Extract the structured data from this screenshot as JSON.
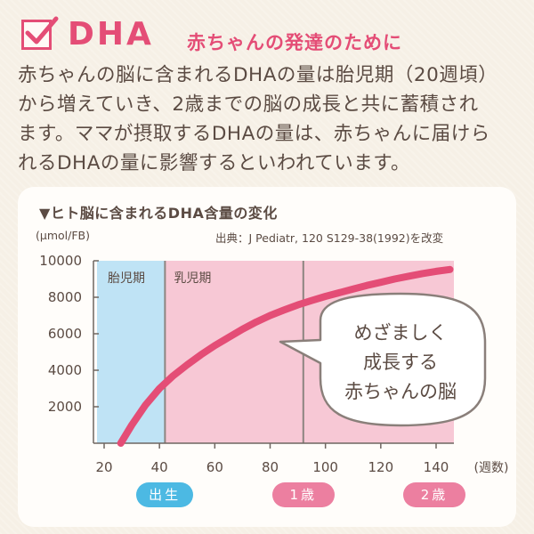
{
  "header": {
    "brand": "DHA",
    "subtitle": "赤ちゃんの発達のために"
  },
  "body_text": [
    "赤ちゃんの脳に含まれるDHAの量は胎児期（20週頃）",
    "から増えていき、2歳までの脳の成長と共に蓄積され",
    "ます。ママが摂取するDHAの量は、赤ちゃんに届けら",
    "れるDHAの量に影響するといわれています。"
  ],
  "colors": {
    "accent": "#e44d76",
    "fetal_region": "#bfe3f5",
    "infant_region": "#f7c8d5",
    "after_one_region": "#f9d3de",
    "birth_pill": "#4cb9e3",
    "age_pill": "#ec7fa0"
  },
  "chart_data": {
    "type": "line",
    "title": "▼ヒト脳に含まれるDHA含量の変化",
    "ylabel": "(μmol/FB)",
    "xlabel": "(週数)",
    "source": "出典：J Pediatr, 120 S129-38(1992)を改変",
    "xlim": [
      20,
      145
    ],
    "ylim": [
      0,
      10000
    ],
    "xticks": [
      20,
      40,
      60,
      80,
      100,
      120,
      140
    ],
    "yticks": [
      2000,
      4000,
      6000,
      8000,
      10000
    ],
    "regions": [
      {
        "label": "胎児期",
        "from": 20,
        "to": 42
      },
      {
        "label": "乳児期",
        "from": 42,
        "to": 145
      }
    ],
    "vline_at": 92,
    "series": [
      {
        "x": [
          26,
          30,
          35,
          40,
          45,
          50,
          55,
          60,
          65,
          70,
          75,
          80,
          85,
          90,
          95,
          100,
          105,
          110,
          115,
          120,
          125,
          130,
          135,
          140,
          145
        ],
        "values": [
          0,
          1000,
          2100,
          3000,
          3700,
          4300,
          4850,
          5350,
          5800,
          6250,
          6650,
          7000,
          7300,
          7580,
          7820,
          8050,
          8250,
          8450,
          8650,
          8820,
          9000,
          9150,
          9300,
          9420,
          9520
        ]
      }
    ],
    "markers": [
      {
        "label": "出生",
        "x": 40
      },
      {
        "label": "1歳",
        "x": 92
      },
      {
        "label": "2歳",
        "x": 144
      }
    ],
    "callout": [
      "めざましく",
      "成長する",
      "赤ちゃんの脳"
    ]
  }
}
